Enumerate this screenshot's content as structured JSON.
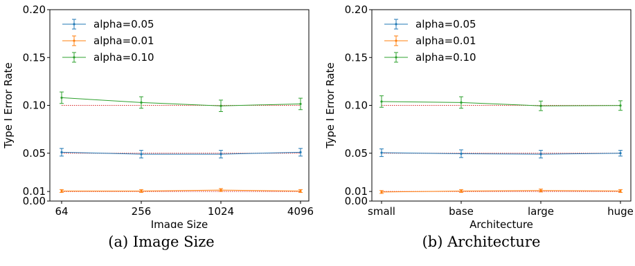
{
  "chart_data": [
    {
      "type": "line",
      "caption": "(a) Image Size",
      "xlabel": "Image Size",
      "ylabel": "Type I Error Rate",
      "categories": [
        "64",
        "256",
        "1024",
        "4096"
      ],
      "ylim": [
        0,
        0.2
      ],
      "yticks": [
        "0.00",
        "0.01",
        "0.05",
        "0.10",
        "0.15",
        "0.20"
      ],
      "reference_lines": [
        0.05,
        0.01,
        0.1
      ],
      "legend_position": "top-left",
      "grid": false,
      "series": [
        {
          "name": "alpha=0.05",
          "color": "#1f77b4",
          "values": [
            0.051,
            0.049,
            0.049,
            0.051
          ],
          "errors": [
            0.004,
            0.004,
            0.004,
            0.004
          ]
        },
        {
          "name": "alpha=0.01",
          "color": "#ff7f0e",
          "values": [
            0.0105,
            0.0105,
            0.0115,
            0.0105
          ],
          "errors": [
            0.0015,
            0.0015,
            0.0015,
            0.0015
          ]
        },
        {
          "name": "alpha=0.10",
          "color": "#2ca02c",
          "values": [
            0.108,
            0.103,
            0.0995,
            0.1015
          ],
          "errors": [
            0.006,
            0.006,
            0.006,
            0.006
          ]
        }
      ]
    },
    {
      "type": "line",
      "caption": "(b) Architecture",
      "xlabel": "Architecture",
      "ylabel": "Type I Error Rate",
      "categories": [
        "small",
        "base",
        "large",
        "huge"
      ],
      "ylim": [
        0,
        0.2
      ],
      "yticks": [
        "0.00",
        "0.01",
        "0.05",
        "0.10",
        "0.15",
        "0.20"
      ],
      "reference_lines": [
        0.05,
        0.01,
        0.1
      ],
      "legend_position": "top-left",
      "grid": false,
      "series": [
        {
          "name": "alpha=0.05",
          "color": "#1f77b4",
          "values": [
            0.0505,
            0.0495,
            0.049,
            0.05
          ],
          "errors": [
            0.004,
            0.004,
            0.004,
            0.003
          ]
        },
        {
          "name": "alpha=0.01",
          "color": "#ff7f0e",
          "values": [
            0.0095,
            0.0105,
            0.011,
            0.0105
          ],
          "errors": [
            0.0015,
            0.0015,
            0.0015,
            0.0015
          ]
        },
        {
          "name": "alpha=0.10",
          "color": "#2ca02c",
          "values": [
            0.104,
            0.103,
            0.0995,
            0.0998
          ],
          "errors": [
            0.006,
            0.006,
            0.005,
            0.005
          ]
        }
      ]
    }
  ],
  "reference_line_color": "#d62728"
}
